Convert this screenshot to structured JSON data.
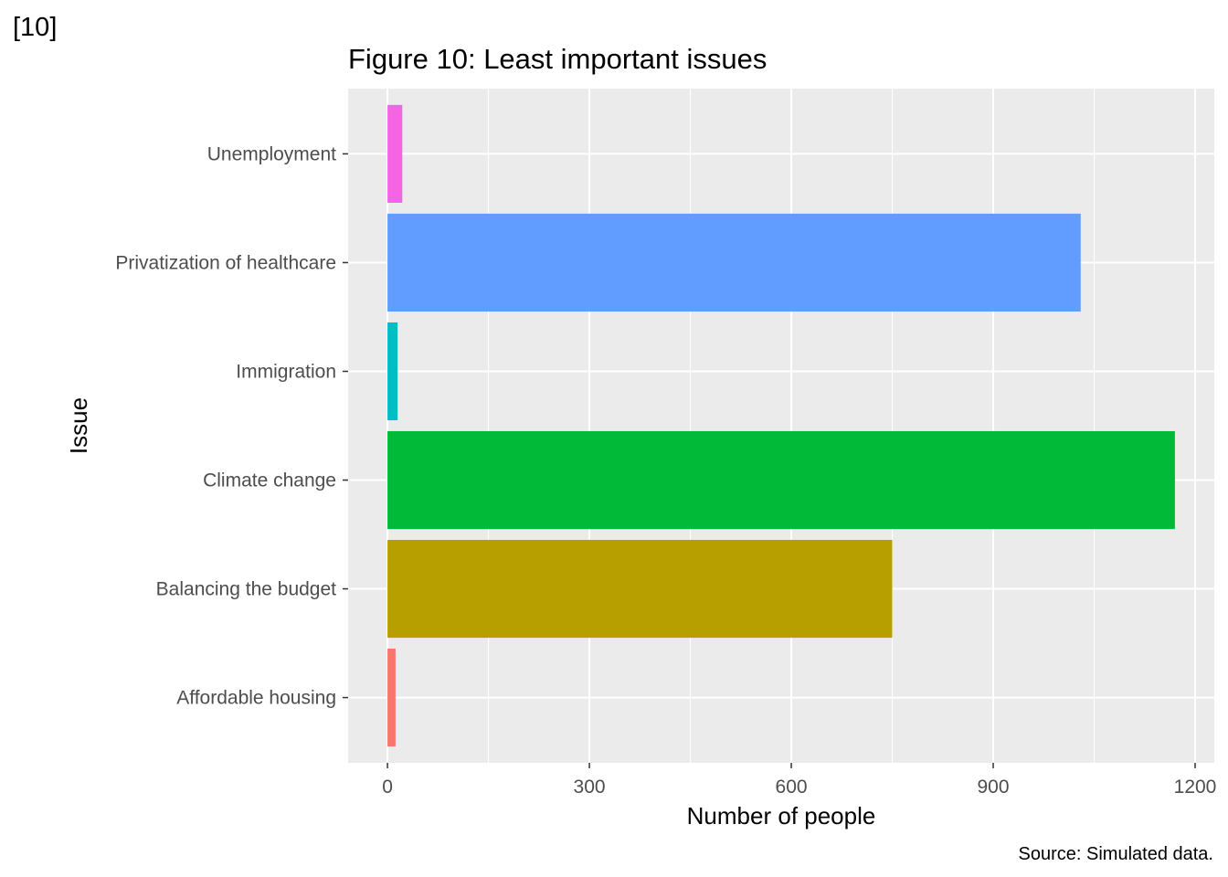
{
  "figure_tag": "[10]",
  "chart_data": {
    "type": "bar",
    "orientation": "horizontal",
    "title": "Figure 10: Least important issues",
    "xlabel": "Number of people",
    "ylabel": "Issue",
    "caption": "Source: Simulated data.",
    "categories": [
      "Affordable housing",
      "Balancing the budget",
      "Climate change",
      "Immigration",
      "Privatization of healthcare",
      "Unemployment"
    ],
    "values": [
      12,
      750,
      1170,
      15,
      1030,
      22
    ],
    "colors": [
      "#F8766D",
      "#B79F00",
      "#00BA38",
      "#00BFC4",
      "#619CFF",
      "#F564E3"
    ],
    "xticks": [
      0,
      300,
      600,
      900,
      1200
    ],
    "xlim": [
      -58.5,
      1228.5
    ],
    "grid": true,
    "legend": "none"
  }
}
